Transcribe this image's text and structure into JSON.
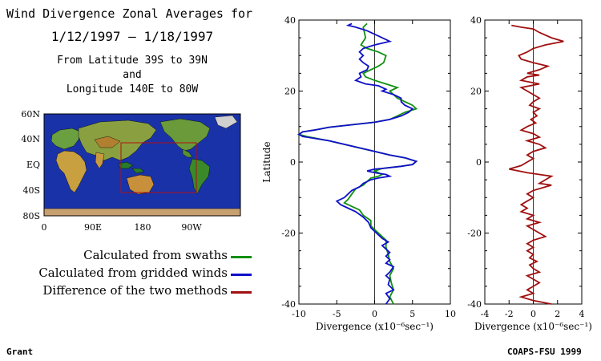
{
  "header": {
    "title": "Wind Divergence Zonal Averages for",
    "dates": "1/12/1997 – 1/18/1997",
    "region_line1": "From Latitude 39S to 39N",
    "region_line2": "and",
    "region_line3": "Longitude 140E to 80W"
  },
  "map": {
    "lat_labels": [
      "60N",
      "40N",
      "EQ",
      "40S",
      "80S"
    ],
    "lon_labels": [
      "0",
      "90E",
      "180",
      "90W"
    ],
    "ocean_color": "#1a32a8",
    "region_box_color": "#b01010"
  },
  "legend": [
    {
      "label": "Calculated from swaths",
      "color": "#109010"
    },
    {
      "label": "Calculated from gridded winds",
      "color": "#1010c8"
    },
    {
      "label": "Difference of the two methods",
      "color": "#a01010"
    }
  ],
  "footer": {
    "left": "Grant",
    "right": "COAPS-FSU 1999"
  },
  "chart_data": [
    {
      "type": "line",
      "ylabel": "Latitude",
      "xlabel": "Divergence (x10⁻⁶sec⁻¹)",
      "xlim": [
        -10,
        10
      ],
      "ylim": [
        -40,
        40
      ],
      "xticks": [
        -10,
        -5,
        0,
        5,
        10
      ],
      "yticks": [
        -40,
        -20,
        0,
        20,
        40
      ],
      "series": [
        {
          "name": "Calculated from swaths",
          "color": "#109010",
          "points": [
            [
              -1,
              39
            ],
            [
              -1.5,
              38
            ],
            [
              -1.2,
              35
            ],
            [
              -1.8,
              33
            ],
            [
              -1,
              32
            ],
            [
              0.5,
              31
            ],
            [
              1.5,
              30
            ],
            [
              1.2,
              28
            ],
            [
              0.5,
              27
            ],
            [
              -0.5,
              26
            ],
            [
              -1.5,
              25
            ],
            [
              -1.2,
              24
            ],
            [
              0,
              23
            ],
            [
              1.5,
              22
            ],
            [
              3,
              21
            ],
            [
              2,
              20
            ],
            [
              2.5,
              19
            ],
            [
              3,
              18
            ],
            [
              4,
              17
            ],
            [
              5,
              16
            ],
            [
              5.5,
              15
            ],
            [
              4,
              14
            ],
            [
              3,
              13
            ],
            [
              2,
              12
            ],
            [
              0,
              11.2
            ],
            [
              -3,
              10.5
            ],
            [
              -6,
              9.8
            ],
            [
              -8,
              9
            ],
            [
              -9.5,
              8.5
            ],
            [
              -10,
              7.8
            ],
            [
              -9,
              7.2
            ],
            [
              -6,
              6
            ],
            [
              -3,
              4.5
            ],
            [
              0,
              3
            ],
            [
              2,
              2
            ],
            [
              4,
              1.2
            ],
            [
              5.5,
              0.2
            ],
            [
              5,
              -0.7
            ],
            [
              3.5,
              -1.2
            ],
            [
              1,
              -1.8
            ],
            [
              0,
              -2.5
            ],
            [
              0.5,
              -3
            ],
            [
              1,
              -3.5
            ],
            [
              0.5,
              -4
            ],
            [
              -0.5,
              -4.5
            ],
            [
              -1,
              -5.5
            ],
            [
              -1.5,
              -6.5
            ],
            [
              -2.5,
              -7.5
            ],
            [
              -3,
              -9
            ],
            [
              -3.5,
              -10.5
            ],
            [
              -4,
              -11.5
            ],
            [
              -3,
              -12.5
            ],
            [
              -2,
              -13.5
            ],
            [
              -1.5,
              -15
            ],
            [
              -0.5,
              -16.5
            ],
            [
              -0.5,
              -18
            ],
            [
              0,
              -19
            ],
            [
              0.5,
              -20
            ],
            [
              1,
              -21
            ],
            [
              1.5,
              -22
            ],
            [
              1.5,
              -24
            ],
            [
              1.8,
              -26
            ],
            [
              2,
              -28
            ],
            [
              2.5,
              -30
            ],
            [
              2,
              -32
            ],
            [
              2.2,
              -34
            ],
            [
              2.5,
              -36
            ],
            [
              2,
              -38
            ],
            [
              2.5,
              -40
            ]
          ]
        },
        {
          "name": "Calculated from gridded winds",
          "color": "#1010c8",
          "points": [
            [
              -3,
              39
            ],
            [
              -3.5,
              38.5
            ],
            [
              -2.5,
              38
            ],
            [
              -1,
              37
            ],
            [
              0,
              36
            ],
            [
              1,
              35
            ],
            [
              2,
              34
            ],
            [
              0,
              33
            ],
            [
              -1.5,
              32
            ],
            [
              -2,
              31
            ],
            [
              -1.5,
              30
            ],
            [
              -2,
              29
            ],
            [
              -1.5,
              28
            ],
            [
              -0.8,
              27
            ],
            [
              -1,
              26
            ],
            [
              -2,
              25
            ],
            [
              -1.8,
              24
            ],
            [
              -2.5,
              23
            ],
            [
              -1.2,
              22
            ],
            [
              0.5,
              21.5
            ],
            [
              1.5,
              20.5
            ],
            [
              1,
              20
            ],
            [
              2.5,
              19
            ],
            [
              3.5,
              18
            ],
            [
              3.5,
              17
            ],
            [
              4,
              16
            ],
            [
              5,
              15
            ],
            [
              4.5,
              14
            ],
            [
              3.5,
              13
            ],
            [
              2,
              12
            ],
            [
              0,
              11.2
            ],
            [
              -3,
              10.5
            ],
            [
              -6,
              9.8
            ],
            [
              -8,
              9
            ],
            [
              -9.5,
              8.5
            ],
            [
              -10,
              7.8
            ],
            [
              -9.5,
              7.2
            ],
            [
              -6,
              6
            ],
            [
              -3,
              4.5
            ],
            [
              0,
              3
            ],
            [
              2,
              2
            ],
            [
              4,
              1.2
            ],
            [
              5.5,
              0.2
            ],
            [
              5,
              -0.7
            ],
            [
              3.5,
              -1.2
            ],
            [
              1,
              -1.8
            ],
            [
              0,
              -2
            ],
            [
              -1,
              -2.5
            ],
            [
              0,
              -3
            ],
            [
              1.5,
              -3.5
            ],
            [
              2,
              -4
            ],
            [
              0.5,
              -4.5
            ],
            [
              -0.5,
              -5
            ],
            [
              -1.5,
              -6
            ],
            [
              -2,
              -7
            ],
            [
              -3,
              -8
            ],
            [
              -3.5,
              -9
            ],
            [
              -4,
              -10
            ],
            [
              -5,
              -11
            ],
            [
              -4.5,
              -12
            ],
            [
              -3.5,
              -13
            ],
            [
              -2.5,
              -14
            ],
            [
              -1.5,
              -15.5
            ],
            [
              -0.8,
              -17
            ],
            [
              -0.5,
              -18.5
            ],
            [
              0,
              -19.5
            ],
            [
              0.5,
              -20.5
            ],
            [
              1,
              -21.5
            ],
            [
              1.8,
              -22.5
            ],
            [
              1,
              -23.5
            ],
            [
              1.5,
              -24.5
            ],
            [
              2,
              -25.5
            ],
            [
              1.5,
              -26.5
            ],
            [
              2,
              -27.5
            ],
            [
              1.5,
              -28.5
            ],
            [
              2.5,
              -29.5
            ],
            [
              2,
              -31
            ],
            [
              1.5,
              -32
            ],
            [
              2,
              -33
            ],
            [
              1.8,
              -34.5
            ],
            [
              2.5,
              -36
            ],
            [
              1.5,
              -37
            ],
            [
              2,
              -38.5
            ],
            [
              1.5,
              -40
            ]
          ]
        }
      ]
    },
    {
      "type": "line",
      "xlabel": "Divergence (x10⁻⁶sec⁻¹)",
      "xlim": [
        -4,
        4
      ],
      "ylim": [
        -40,
        40
      ],
      "xticks": [
        -4,
        -2,
        0,
        2,
        4
      ],
      "yticks": [
        -40,
        -20,
        0,
        20,
        40
      ],
      "series": [
        {
          "name": "Difference of the two methods",
          "color": "#a01010",
          "points": [
            [
              -1.8,
              38.5
            ],
            [
              -1,
              38
            ],
            [
              0,
              37.5
            ],
            [
              0.5,
              36.5
            ],
            [
              1.5,
              35
            ],
            [
              2.5,
              34
            ],
            [
              1,
              33
            ],
            [
              0,
              32
            ],
            [
              -0.5,
              31
            ],
            [
              -1.2,
              30
            ],
            [
              -1,
              29
            ],
            [
              0,
              28
            ],
            [
              1.2,
              27
            ],
            [
              0.5,
              26
            ],
            [
              -0.5,
              25
            ],
            [
              0.5,
              24.5
            ],
            [
              -0.5,
              24
            ],
            [
              -1,
              23
            ],
            [
              0.5,
              22
            ],
            [
              -1,
              21
            ],
            [
              -0.5,
              20
            ],
            [
              0,
              19
            ],
            [
              0.5,
              18
            ],
            [
              0,
              17
            ],
            [
              -0.3,
              16
            ],
            [
              0.5,
              15
            ],
            [
              0,
              14
            ],
            [
              0.3,
              13
            ],
            [
              -0.2,
              12
            ],
            [
              0.2,
              11
            ],
            [
              -0.5,
              10
            ],
            [
              -1,
              9
            ],
            [
              0,
              8
            ],
            [
              0.5,
              7
            ],
            [
              -0.5,
              6
            ],
            [
              0.5,
              5
            ],
            [
              1,
              4
            ],
            [
              0,
              3
            ],
            [
              -0.5,
              2
            ],
            [
              0,
              1
            ],
            [
              -0.5,
              0
            ],
            [
              -1,
              -1
            ],
            [
              -2,
              -2
            ],
            [
              -0.5,
              -3
            ],
            [
              0.5,
              -3.5
            ],
            [
              1.5,
              -4
            ],
            [
              1,
              -5
            ],
            [
              0.5,
              -6
            ],
            [
              1.5,
              -6.5
            ],
            [
              1,
              -7
            ],
            [
              0,
              -8
            ],
            [
              -0.5,
              -9
            ],
            [
              0,
              -10
            ],
            [
              -0.5,
              -11
            ],
            [
              -1,
              -12
            ],
            [
              -0.5,
              -13
            ],
            [
              -1,
              -14
            ],
            [
              0,
              -15
            ],
            [
              -0.5,
              -16
            ],
            [
              0.5,
              -17
            ],
            [
              -0.5,
              -18
            ],
            [
              0,
              -19
            ],
            [
              0.5,
              -20
            ],
            [
              1,
              -21
            ],
            [
              0,
              -22
            ],
            [
              -0.5,
              -23
            ],
            [
              0,
              -24
            ],
            [
              -0.5,
              -25
            ],
            [
              0,
              -26
            ],
            [
              -0.3,
              -27
            ],
            [
              0.3,
              -28
            ],
            [
              -0.3,
              -29
            ],
            [
              0,
              -30
            ],
            [
              0.5,
              -31
            ],
            [
              -0.5,
              -32
            ],
            [
              0,
              -33
            ],
            [
              0.5,
              -34
            ],
            [
              0,
              -35
            ],
            [
              -0.5,
              -36
            ],
            [
              0,
              -37
            ],
            [
              -1,
              -38
            ],
            [
              0,
              -39
            ],
            [
              1.5,
              -40
            ]
          ]
        }
      ]
    }
  ]
}
